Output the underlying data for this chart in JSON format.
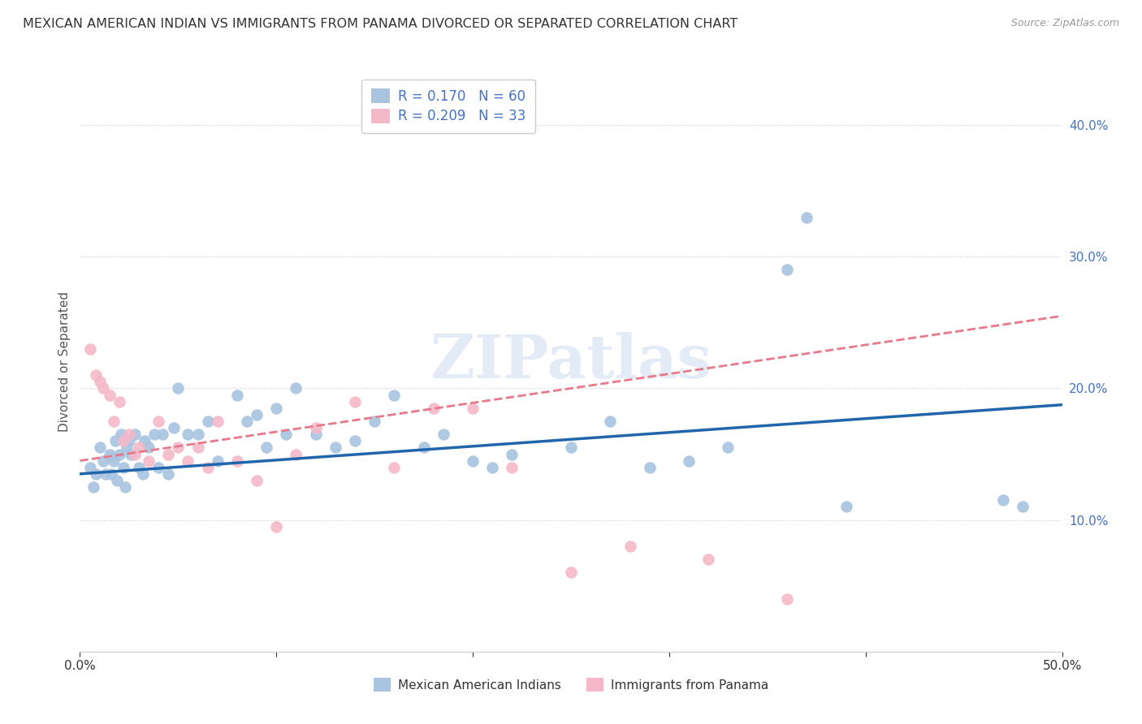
{
  "title": "MEXICAN AMERICAN INDIAN VS IMMIGRANTS FROM PANAMA DIVORCED OR SEPARATED CORRELATION CHART",
  "source": "Source: ZipAtlas.com",
  "xlabel": "",
  "ylabel": "Divorced or Separated",
  "xlim": [
    0.0,
    0.5
  ],
  "ylim": [
    0.0,
    0.44
  ],
  "blue_R": 0.17,
  "blue_N": 60,
  "pink_R": 0.209,
  "pink_N": 33,
  "blue_color": "#a8c4e0",
  "pink_color": "#f4b8c8",
  "blue_line_color": "#2166ac",
  "pink_line_color": "#e8788a",
  "watermark": "ZIPatlas",
  "blue_scatter_x": [
    0.005,
    0.007,
    0.008,
    0.01,
    0.012,
    0.013,
    0.015,
    0.016,
    0.017,
    0.018,
    0.019,
    0.02,
    0.021,
    0.022,
    0.023,
    0.024,
    0.025,
    0.026,
    0.028,
    0.03,
    0.032,
    0.033,
    0.035,
    0.038,
    0.04,
    0.042,
    0.045,
    0.048,
    0.05,
    0.055,
    0.06,
    0.065,
    0.07,
    0.08,
    0.085,
    0.09,
    0.095,
    0.1,
    0.105,
    0.11,
    0.12,
    0.13,
    0.14,
    0.15,
    0.16,
    0.175,
    0.185,
    0.2,
    0.21,
    0.22,
    0.25,
    0.27,
    0.29,
    0.31,
    0.33,
    0.36,
    0.37,
    0.39,
    0.47,
    0.48
  ],
  "blue_scatter_y": [
    0.14,
    0.125,
    0.135,
    0.155,
    0.145,
    0.135,
    0.15,
    0.135,
    0.145,
    0.16,
    0.13,
    0.15,
    0.165,
    0.14,
    0.125,
    0.155,
    0.16,
    0.15,
    0.165,
    0.14,
    0.135,
    0.16,
    0.155,
    0.165,
    0.14,
    0.165,
    0.135,
    0.17,
    0.2,
    0.165,
    0.165,
    0.175,
    0.145,
    0.195,
    0.175,
    0.18,
    0.155,
    0.185,
    0.165,
    0.2,
    0.165,
    0.155,
    0.16,
    0.175,
    0.195,
    0.155,
    0.165,
    0.145,
    0.14,
    0.15,
    0.155,
    0.175,
    0.14,
    0.145,
    0.155,
    0.29,
    0.33,
    0.11,
    0.115,
    0.11
  ],
  "pink_scatter_x": [
    0.005,
    0.008,
    0.01,
    0.012,
    0.015,
    0.017,
    0.02,
    0.022,
    0.025,
    0.028,
    0.03,
    0.035,
    0.04,
    0.045,
    0.05,
    0.055,
    0.06,
    0.065,
    0.07,
    0.08,
    0.09,
    0.1,
    0.11,
    0.12,
    0.14,
    0.16,
    0.18,
    0.2,
    0.22,
    0.25,
    0.28,
    0.32,
    0.36
  ],
  "pink_scatter_y": [
    0.23,
    0.21,
    0.205,
    0.2,
    0.195,
    0.175,
    0.19,
    0.16,
    0.165,
    0.15,
    0.155,
    0.145,
    0.175,
    0.15,
    0.155,
    0.145,
    0.155,
    0.14,
    0.175,
    0.145,
    0.13,
    0.095,
    0.15,
    0.17,
    0.19,
    0.14,
    0.185,
    0.185,
    0.14,
    0.06,
    0.08,
    0.07,
    0.04
  ]
}
